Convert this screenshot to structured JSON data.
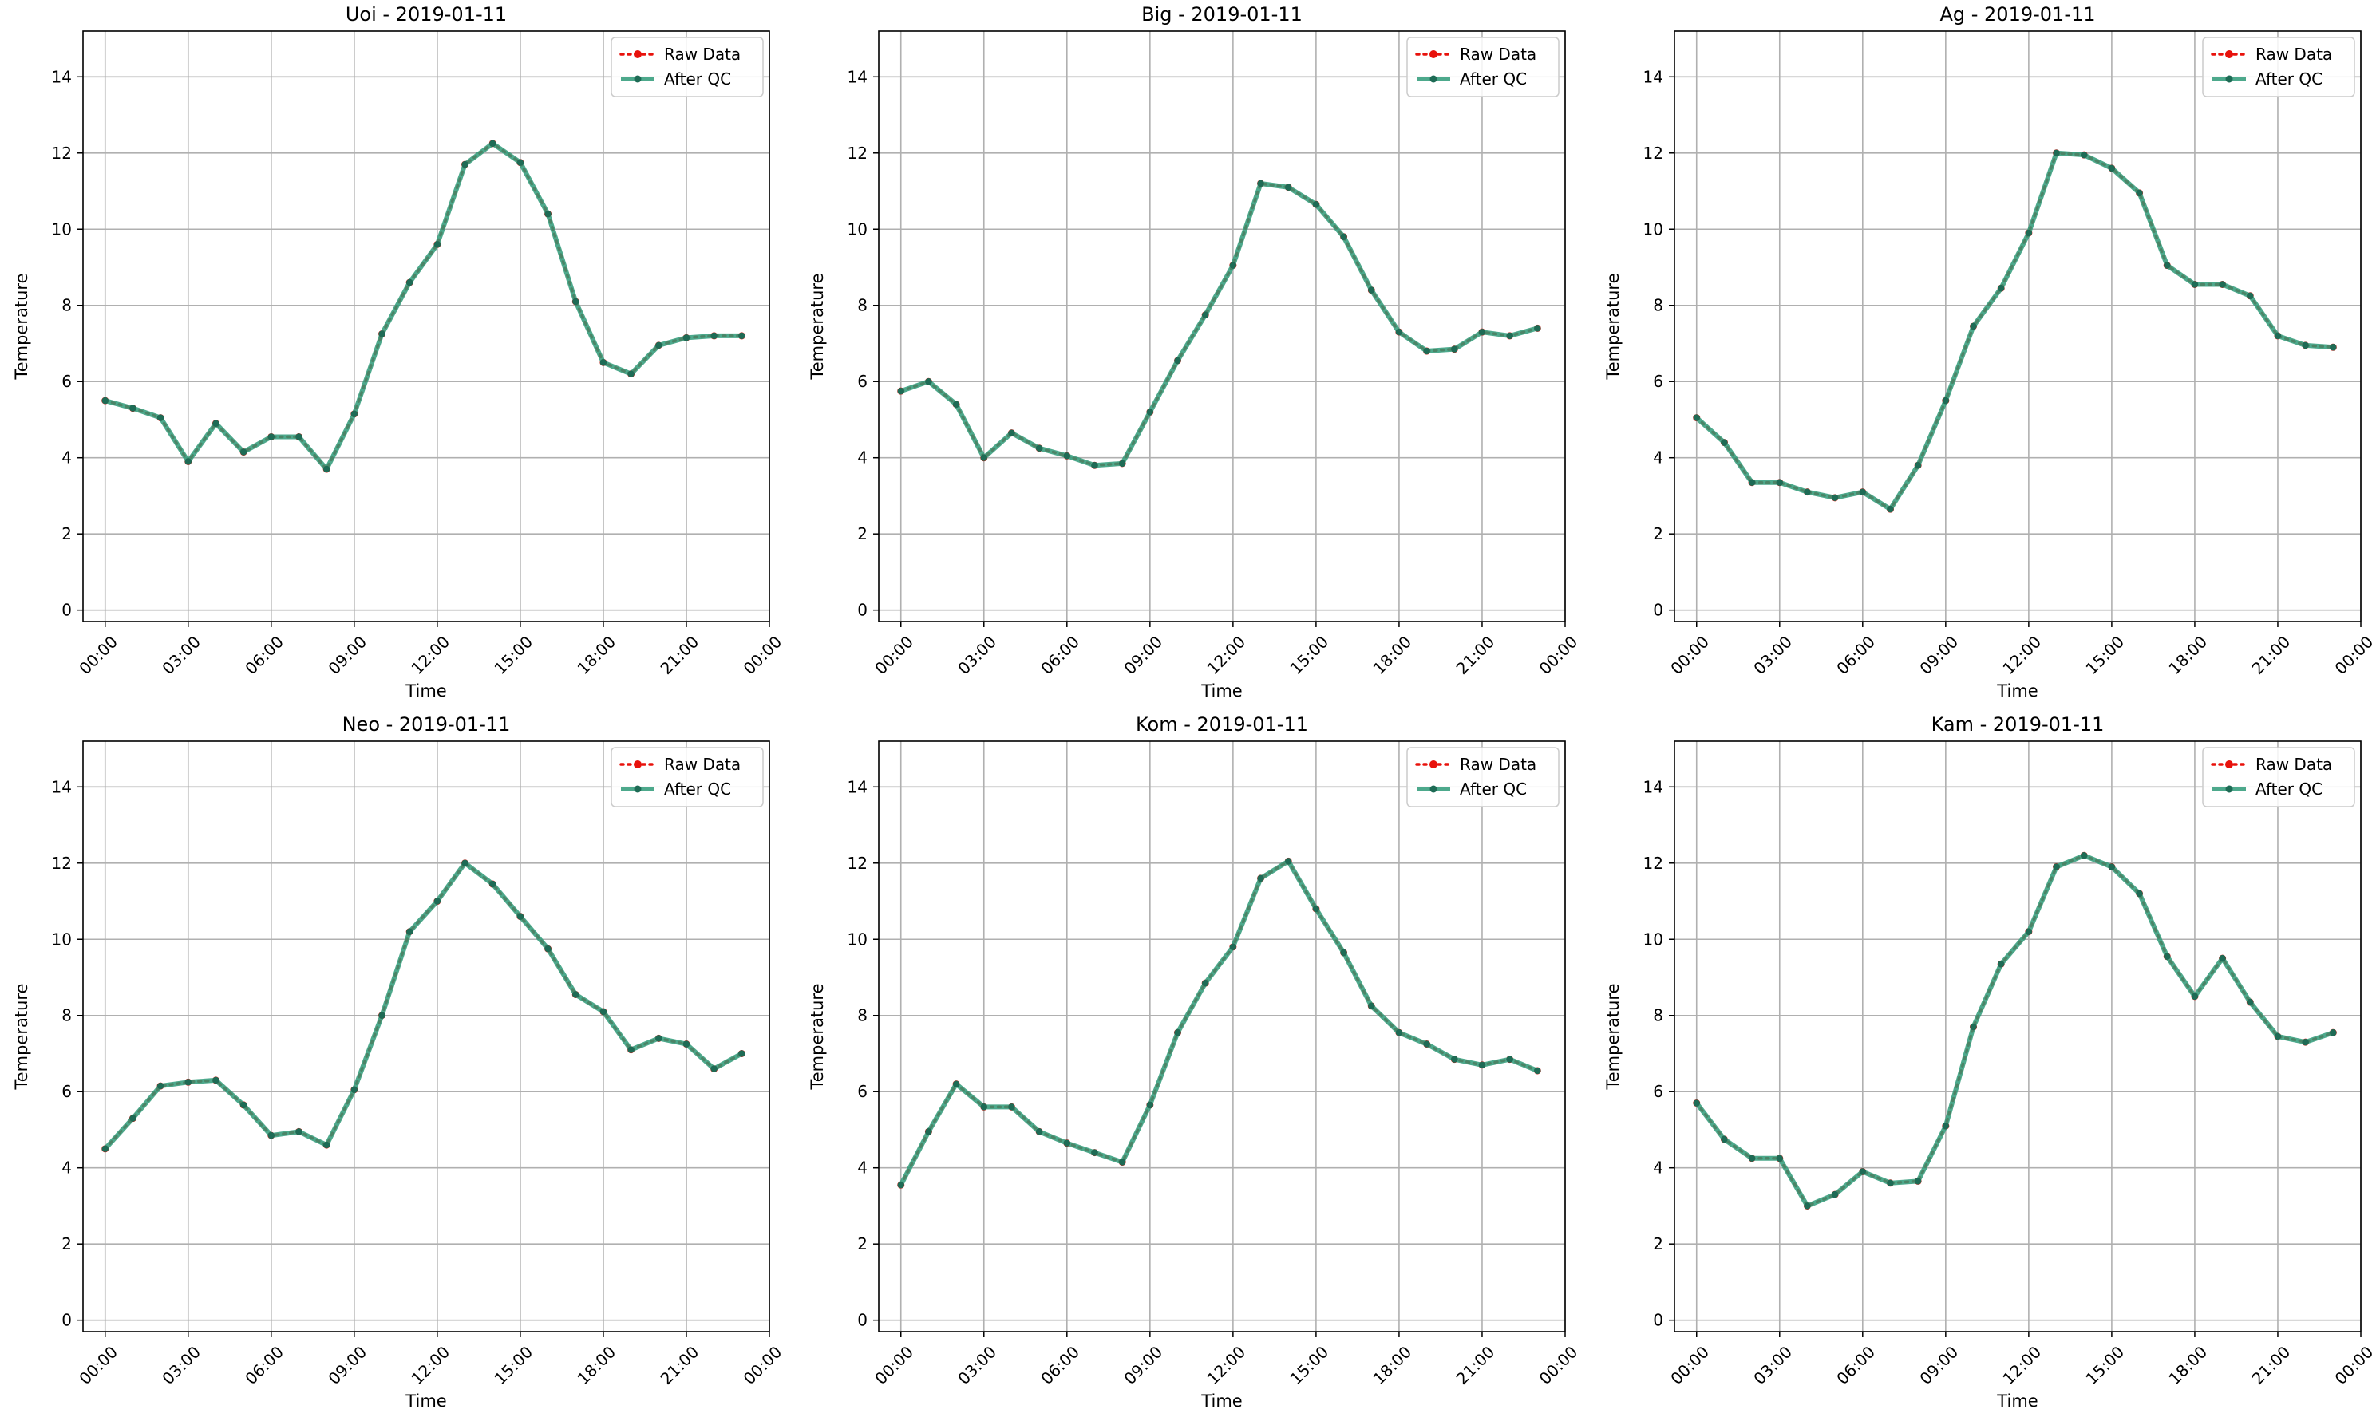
{
  "figure": {
    "legend_labels": {
      "raw": "Raw Data",
      "qc": "After QC"
    },
    "colors": {
      "raw": "#e8120c",
      "qc": "#2e9a78",
      "qc_marker": "#1e6b55",
      "grid": "#b0b0b0"
    }
  },
  "chart_data": [
    {
      "type": "line",
      "title": "Uoi - 2019-01-11",
      "xlabel": "Time",
      "ylabel": "Temperature",
      "xlim": [
        -0.8,
        24.0
      ],
      "ylim": [
        -0.3,
        15.2
      ],
      "x_ticks": [
        "00:00",
        "03:00",
        "06:00",
        "09:00",
        "12:00",
        "15:00",
        "18:00",
        "21:00",
        "00:00"
      ],
      "y_ticks": [
        0,
        2,
        4,
        6,
        8,
        10,
        12,
        14
      ],
      "grid": true,
      "legend_position": "upper-right",
      "x_hours": [
        0,
        1,
        2,
        3,
        4,
        5,
        6,
        7,
        8,
        9,
        10,
        11,
        12,
        13,
        14,
        15,
        16,
        17,
        18,
        19,
        20,
        21,
        22,
        23
      ],
      "series": [
        {
          "name": "Raw Data",
          "values": [
            5.5,
            5.3,
            5.05,
            3.9,
            4.9,
            4.15,
            4.55,
            4.55,
            3.7,
            5.15,
            7.25,
            8.6,
            9.6,
            11.7,
            12.25,
            11.75,
            10.4,
            8.1,
            6.5,
            6.2,
            6.95,
            7.15,
            7.2,
            7.2
          ]
        },
        {
          "name": "After QC",
          "values": [
            5.5,
            5.3,
            5.05,
            3.9,
            4.9,
            4.15,
            4.55,
            4.55,
            3.7,
            5.15,
            7.25,
            8.6,
            9.6,
            11.7,
            12.25,
            11.75,
            10.4,
            8.1,
            6.5,
            6.2,
            6.95,
            7.15,
            7.2,
            7.2
          ]
        }
      ]
    },
    {
      "type": "line",
      "title": "Big - 2019-01-11",
      "xlabel": "Time",
      "ylabel": "Temperature",
      "xlim": [
        -0.8,
        24.0
      ],
      "ylim": [
        -0.3,
        15.2
      ],
      "x_ticks": [
        "00:00",
        "03:00",
        "06:00",
        "09:00",
        "12:00",
        "15:00",
        "18:00",
        "21:00",
        "00:00"
      ],
      "y_ticks": [
        0,
        2,
        4,
        6,
        8,
        10,
        12,
        14
      ],
      "grid": true,
      "legend_position": "upper-right",
      "x_hours": [
        0,
        1,
        2,
        3,
        4,
        5,
        6,
        7,
        8,
        9,
        10,
        11,
        12,
        13,
        14,
        15,
        16,
        17,
        18,
        19,
        20,
        21,
        22,
        23
      ],
      "series": [
        {
          "name": "Raw Data",
          "values": [
            5.75,
            6.0,
            5.4,
            4.0,
            4.65,
            4.25,
            4.05,
            3.8,
            3.85,
            5.2,
            6.55,
            7.75,
            9.05,
            11.2,
            11.1,
            10.65,
            9.8,
            8.4,
            7.3,
            6.8,
            6.85,
            7.3,
            7.2,
            7.4
          ]
        },
        {
          "name": "After QC",
          "values": [
            5.75,
            6.0,
            5.4,
            4.0,
            4.65,
            4.25,
            4.05,
            3.8,
            3.85,
            5.2,
            6.55,
            7.75,
            9.05,
            11.2,
            11.1,
            10.65,
            9.8,
            8.4,
            7.3,
            6.8,
            6.85,
            7.3,
            7.2,
            7.4
          ]
        }
      ]
    },
    {
      "type": "line",
      "title": "Ag - 2019-01-11",
      "xlabel": "Time",
      "ylabel": "Temperature",
      "xlim": [
        -0.8,
        24.0
      ],
      "ylim": [
        -0.3,
        15.2
      ],
      "x_ticks": [
        "00:00",
        "03:00",
        "06:00",
        "09:00",
        "12:00",
        "15:00",
        "18:00",
        "21:00",
        "00:00"
      ],
      "y_ticks": [
        0,
        2,
        4,
        6,
        8,
        10,
        12,
        14
      ],
      "grid": true,
      "legend_position": "upper-right",
      "x_hours": [
        0,
        1,
        2,
        3,
        4,
        5,
        6,
        7,
        8,
        9,
        10,
        11,
        12,
        13,
        14,
        15,
        16,
        17,
        18,
        19,
        20,
        21,
        22,
        23
      ],
      "series": [
        {
          "name": "Raw Data",
          "values": [
            5.05,
            4.4,
            3.35,
            3.35,
            3.1,
            2.95,
            3.1,
            2.65,
            3.8,
            5.5,
            7.45,
            8.45,
            9.9,
            12.0,
            11.95,
            11.6,
            10.95,
            9.05,
            8.55,
            8.55,
            8.25,
            7.2,
            6.95,
            6.9
          ]
        },
        {
          "name": "After QC",
          "values": [
            5.05,
            4.4,
            3.35,
            3.35,
            3.1,
            2.95,
            3.1,
            2.65,
            3.8,
            5.5,
            7.45,
            8.45,
            9.9,
            12.0,
            11.95,
            11.6,
            10.95,
            9.05,
            8.55,
            8.55,
            8.25,
            7.2,
            6.95,
            6.9
          ]
        }
      ]
    },
    {
      "type": "line",
      "title": "Neo - 2019-01-11",
      "xlabel": "Time",
      "ylabel": "Temperature",
      "xlim": [
        -0.8,
        24.0
      ],
      "ylim": [
        -0.3,
        15.2
      ],
      "x_ticks": [
        "00:00",
        "03:00",
        "06:00",
        "09:00",
        "12:00",
        "15:00",
        "18:00",
        "21:00",
        "00:00"
      ],
      "y_ticks": [
        0,
        2,
        4,
        6,
        8,
        10,
        12,
        14
      ],
      "grid": true,
      "legend_position": "upper-right",
      "x_hours": [
        0,
        1,
        2,
        3,
        4,
        5,
        6,
        7,
        8,
        9,
        10,
        11,
        12,
        13,
        14,
        15,
        16,
        17,
        18,
        19,
        20,
        21,
        22,
        23
      ],
      "series": [
        {
          "name": "Raw Data",
          "values": [
            4.5,
            5.3,
            6.15,
            6.25,
            6.3,
            5.65,
            4.85,
            4.95,
            4.6,
            6.05,
            8.0,
            10.2,
            11.0,
            12.0,
            11.45,
            10.6,
            9.75,
            8.55,
            8.1,
            7.1,
            7.4,
            7.25,
            6.6,
            7.0
          ]
        },
        {
          "name": "After QC",
          "values": [
            4.5,
            5.3,
            6.15,
            6.25,
            6.3,
            5.65,
            4.85,
            4.95,
            4.6,
            6.05,
            8.0,
            10.2,
            11.0,
            12.0,
            11.45,
            10.6,
            9.75,
            8.55,
            8.1,
            7.1,
            7.4,
            7.25,
            6.6,
            7.0
          ]
        }
      ]
    },
    {
      "type": "line",
      "title": "Kom - 2019-01-11",
      "xlabel": "Time",
      "ylabel": "Temperature",
      "xlim": [
        -0.8,
        24.0
      ],
      "ylim": [
        -0.3,
        15.2
      ],
      "x_ticks": [
        "00:00",
        "03:00",
        "06:00",
        "09:00",
        "12:00",
        "15:00",
        "18:00",
        "21:00",
        "00:00"
      ],
      "y_ticks": [
        0,
        2,
        4,
        6,
        8,
        10,
        12,
        14
      ],
      "grid": true,
      "legend_position": "upper-right",
      "x_hours": [
        0,
        1,
        2,
        3,
        4,
        5,
        6,
        7,
        8,
        9,
        10,
        11,
        12,
        13,
        14,
        15,
        16,
        17,
        18,
        19,
        20,
        21,
        22,
        23
      ],
      "series": [
        {
          "name": "Raw Data",
          "values": [
            3.55,
            4.95,
            6.2,
            5.6,
            5.6,
            4.95,
            4.65,
            4.4,
            4.15,
            5.65,
            7.55,
            8.85,
            9.8,
            11.6,
            12.05,
            10.8,
            9.65,
            8.25,
            7.55,
            7.25,
            6.85,
            6.7,
            6.85,
            6.55
          ]
        },
        {
          "name": "After QC",
          "values": [
            3.55,
            4.95,
            6.2,
            5.6,
            5.6,
            4.95,
            4.65,
            4.4,
            4.15,
            5.65,
            7.55,
            8.85,
            9.8,
            11.6,
            12.05,
            10.8,
            9.65,
            8.25,
            7.55,
            7.25,
            6.85,
            6.7,
            6.85,
            6.55
          ]
        }
      ]
    },
    {
      "type": "line",
      "title": "Kam - 2019-01-11",
      "xlabel": "Time",
      "ylabel": "Temperature",
      "xlim": [
        -0.8,
        24.0
      ],
      "ylim": [
        -0.3,
        15.2
      ],
      "x_ticks": [
        "00:00",
        "03:00",
        "06:00",
        "09:00",
        "12:00",
        "15:00",
        "18:00",
        "21:00",
        "00:00"
      ],
      "y_ticks": [
        0,
        2,
        4,
        6,
        8,
        10,
        12,
        14
      ],
      "grid": true,
      "legend_position": "upper-right",
      "x_hours": [
        0,
        1,
        2,
        3,
        4,
        5,
        6,
        7,
        8,
        9,
        10,
        11,
        12,
        13,
        14,
        15,
        16,
        17,
        18,
        19,
        20,
        21,
        22,
        23
      ],
      "series": [
        {
          "name": "Raw Data",
          "values": [
            5.7,
            4.75,
            4.25,
            4.25,
            3.0,
            3.3,
            3.9,
            3.6,
            3.65,
            5.1,
            7.7,
            9.35,
            10.2,
            11.9,
            12.2,
            11.9,
            11.2,
            9.55,
            8.5,
            9.5,
            8.35,
            7.45,
            7.3,
            7.55
          ]
        },
        {
          "name": "After QC",
          "values": [
            5.7,
            4.75,
            4.25,
            4.25,
            3.0,
            3.3,
            3.9,
            3.6,
            3.65,
            5.1,
            7.7,
            9.35,
            10.2,
            11.9,
            12.2,
            11.9,
            11.2,
            9.55,
            8.5,
            9.5,
            8.35,
            7.45,
            7.3,
            7.55
          ]
        }
      ]
    }
  ]
}
